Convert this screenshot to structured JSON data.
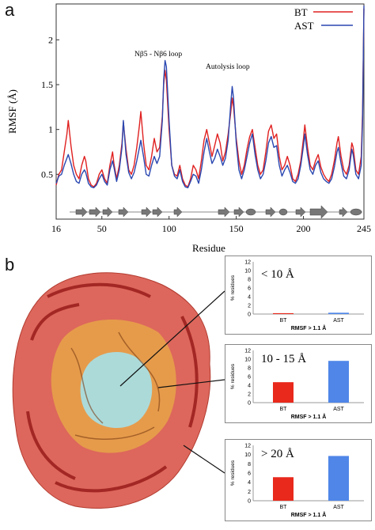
{
  "panel_labels": {
    "a": "a",
    "b": "b"
  },
  "colors": {
    "bt": "#e02020",
    "ast": "#2a47b0",
    "bar_bt": "#e8291c",
    "bar_ast": "#4f86e8",
    "protein_outer": "#d9574a",
    "protein_mid": "#e6a04a",
    "protein_core": "#a9dde0"
  },
  "chart_data": [
    {
      "type": "line",
      "xlabel": "Residue",
      "ylabel": "RMSF (Å)",
      "x_ticks": [
        "16",
        "50",
        "100",
        "150",
        "200",
        "245"
      ],
      "y_ticks": [
        "0.5",
        "1",
        "1.5",
        "2"
      ],
      "xlim": [
        16,
        245
      ],
      "ylim": [
        0.0,
        2.4
      ],
      "legend": {
        "placement": "top-right",
        "entries": [
          "BT",
          "AST"
        ]
      },
      "annotations": [
        "Nβ5 - Nβ6 loop",
        "Autolysis loop"
      ],
      "series": [
        {
          "name": "BT",
          "points": [
            [
              16,
              0.38
            ],
            [
              18,
              0.5
            ],
            [
              20,
              0.55
            ],
            [
              22,
              0.75
            ],
            [
              24,
              0.95
            ],
            [
              25,
              1.1
            ],
            [
              27,
              0.82
            ],
            [
              29,
              0.6
            ],
            [
              31,
              0.5
            ],
            [
              33,
              0.45
            ],
            [
              35,
              0.6
            ],
            [
              37,
              0.7
            ],
            [
              38,
              0.65
            ],
            [
              40,
              0.45
            ],
            [
              42,
              0.38
            ],
            [
              44,
              0.36
            ],
            [
              46,
              0.4
            ],
            [
              48,
              0.5
            ],
            [
              50,
              0.55
            ],
            [
              52,
              0.45
            ],
            [
              54,
              0.4
            ],
            [
              56,
              0.6
            ],
            [
              58,
              0.75
            ],
            [
              59,
              0.62
            ],
            [
              61,
              0.45
            ],
            [
              63,
              0.6
            ],
            [
              65,
              0.85
            ],
            [
              66,
              1.08
            ],
            [
              68,
              0.78
            ],
            [
              70,
              0.55
            ],
            [
              72,
              0.5
            ],
            [
              74,
              0.6
            ],
            [
              76,
              0.8
            ],
            [
              78,
              1.05
            ],
            [
              79,
              1.2
            ],
            [
              81,
              0.85
            ],
            [
              83,
              0.6
            ],
            [
              85,
              0.55
            ],
            [
              87,
              0.7
            ],
            [
              89,
              0.9
            ],
            [
              91,
              0.75
            ],
            [
              93,
              0.8
            ],
            [
              95,
              1.15
            ],
            [
              96,
              1.5
            ],
            [
              97,
              1.66
            ],
            [
              98,
              1.55
            ],
            [
              100,
              1.0
            ],
            [
              102,
              0.6
            ],
            [
              104,
              0.5
            ],
            [
              106,
              0.48
            ],
            [
              108,
              0.6
            ],
            [
              110,
              0.45
            ],
            [
              112,
              0.38
            ],
            [
              114,
              0.36
            ],
            [
              116,
              0.45
            ],
            [
              118,
              0.6
            ],
            [
              120,
              0.55
            ],
            [
              122,
              0.45
            ],
            [
              124,
              0.65
            ],
            [
              126,
              0.88
            ],
            [
              128,
              1.0
            ],
            [
              130,
              0.85
            ],
            [
              132,
              0.7
            ],
            [
              134,
              0.82
            ],
            [
              136,
              0.95
            ],
            [
              138,
              0.85
            ],
            [
              140,
              0.65
            ],
            [
              142,
              0.75
            ],
            [
              144,
              0.95
            ],
            [
              146,
              1.2
            ],
            [
              147,
              1.35
            ],
            [
              148,
              1.25
            ],
            [
              150,
              0.9
            ],
            [
              152,
              0.65
            ],
            [
              154,
              0.5
            ],
            [
              156,
              0.6
            ],
            [
              158,
              0.78
            ],
            [
              160,
              0.92
            ],
            [
              162,
              1.0
            ],
            [
              164,
              0.8
            ],
            [
              166,
              0.6
            ],
            [
              168,
              0.5
            ],
            [
              170,
              0.55
            ],
            [
              172,
              0.75
            ],
            [
              174,
              0.98
            ],
            [
              176,
              1.05
            ],
            [
              178,
              0.9
            ],
            [
              180,
              0.95
            ],
            [
              182,
              0.7
            ],
            [
              184,
              0.55
            ],
            [
              186,
              0.6
            ],
            [
              188,
              0.7
            ],
            [
              190,
              0.6
            ],
            [
              192,
              0.45
            ],
            [
              194,
              0.42
            ],
            [
              196,
              0.5
            ],
            [
              198,
              0.65
            ],
            [
              200,
              0.9
            ],
            [
              201,
              1.05
            ],
            [
              203,
              0.8
            ],
            [
              205,
              0.6
            ],
            [
              207,
              0.55
            ],
            [
              209,
              0.65
            ],
            [
              211,
              0.72
            ],
            [
              213,
              0.58
            ],
            [
              215,
              0.5
            ],
            [
              217,
              0.45
            ],
            [
              219,
              0.42
            ],
            [
              221,
              0.5
            ],
            [
              223,
              0.65
            ],
            [
              225,
              0.85
            ],
            [
              226,
              0.92
            ],
            [
              228,
              0.7
            ],
            [
              230,
              0.55
            ],
            [
              232,
              0.5
            ],
            [
              234,
              0.6
            ],
            [
              236,
              0.85
            ],
            [
              237,
              0.8
            ],
            [
              239,
              0.55
            ],
            [
              241,
              0.5
            ],
            [
              243,
              0.7
            ],
            [
              244,
              1.2
            ],
            [
              245,
              2.35
            ]
          ]
        },
        {
          "name": "AST",
          "points": [
            [
              16,
              0.4
            ],
            [
              18,
              0.48
            ],
            [
              20,
              0.5
            ],
            [
              22,
              0.6
            ],
            [
              24,
              0.68
            ],
            [
              25,
              0.72
            ],
            [
              27,
              0.62
            ],
            [
              29,
              0.5
            ],
            [
              31,
              0.42
            ],
            [
              33,
              0.4
            ],
            [
              35,
              0.5
            ],
            [
              37,
              0.55
            ],
            [
              38,
              0.52
            ],
            [
              40,
              0.4
            ],
            [
              42,
              0.36
            ],
            [
              44,
              0.35
            ],
            [
              46,
              0.38
            ],
            [
              48,
              0.45
            ],
            [
              50,
              0.5
            ],
            [
              52,
              0.42
            ],
            [
              54,
              0.38
            ],
            [
              56,
              0.55
            ],
            [
              58,
              0.65
            ],
            [
              59,
              0.58
            ],
            [
              61,
              0.42
            ],
            [
              63,
              0.55
            ],
            [
              65,
              0.8
            ],
            [
              66,
              1.1
            ],
            [
              68,
              0.72
            ],
            [
              70,
              0.52
            ],
            [
              72,
              0.45
            ],
            [
              74,
              0.52
            ],
            [
              76,
              0.65
            ],
            [
              78,
              0.8
            ],
            [
              79,
              0.88
            ],
            [
              81,
              0.7
            ],
            [
              83,
              0.5
            ],
            [
              85,
              0.48
            ],
            [
              87,
              0.6
            ],
            [
              89,
              0.7
            ],
            [
              91,
              0.62
            ],
            [
              93,
              0.7
            ],
            [
              95,
              1.1
            ],
            [
              96,
              1.55
            ],
            [
              97,
              1.77
            ],
            [
              98,
              1.7
            ],
            [
              100,
              1.1
            ],
            [
              102,
              0.6
            ],
            [
              104,
              0.48
            ],
            [
              106,
              0.45
            ],
            [
              108,
              0.55
            ],
            [
              110,
              0.42
            ],
            [
              112,
              0.36
            ],
            [
              114,
              0.35
            ],
            [
              116,
              0.42
            ],
            [
              118,
              0.5
            ],
            [
              120,
              0.48
            ],
            [
              122,
              0.4
            ],
            [
              124,
              0.55
            ],
            [
              126,
              0.75
            ],
            [
              128,
              0.9
            ],
            [
              130,
              0.75
            ],
            [
              132,
              0.62
            ],
            [
              134,
              0.68
            ],
            [
              136,
              0.78
            ],
            [
              138,
              0.7
            ],
            [
              140,
              0.6
            ],
            [
              142,
              0.68
            ],
            [
              144,
              0.88
            ],
            [
              146,
              1.3
            ],
            [
              147,
              1.48
            ],
            [
              148,
              1.35
            ],
            [
              150,
              0.85
            ],
            [
              152,
              0.55
            ],
            [
              154,
              0.45
            ],
            [
              156,
              0.55
            ],
            [
              158,
              0.7
            ],
            [
              160,
              0.85
            ],
            [
              162,
              0.95
            ],
            [
              164,
              0.72
            ],
            [
              166,
              0.55
            ],
            [
              168,
              0.45
            ],
            [
              170,
              0.5
            ],
            [
              172,
              0.65
            ],
            [
              174,
              0.85
            ],
            [
              176,
              0.92
            ],
            [
              178,
              0.8
            ],
            [
              180,
              0.82
            ],
            [
              182,
              0.6
            ],
            [
              184,
              0.48
            ],
            [
              186,
              0.55
            ],
            [
              188,
              0.6
            ],
            [
              190,
              0.52
            ],
            [
              192,
              0.42
            ],
            [
              194,
              0.4
            ],
            [
              196,
              0.45
            ],
            [
              198,
              0.6
            ],
            [
              200,
              0.82
            ],
            [
              201,
              0.95
            ],
            [
              203,
              0.72
            ],
            [
              205,
              0.55
            ],
            [
              207,
              0.5
            ],
            [
              209,
              0.6
            ],
            [
              211,
              0.65
            ],
            [
              213,
              0.52
            ],
            [
              215,
              0.45
            ],
            [
              217,
              0.42
            ],
            [
              219,
              0.4
            ],
            [
              221,
              0.45
            ],
            [
              223,
              0.58
            ],
            [
              225,
              0.75
            ],
            [
              226,
              0.8
            ],
            [
              228,
              0.62
            ],
            [
              230,
              0.48
            ],
            [
              232,
              0.45
            ],
            [
              234,
              0.55
            ],
            [
              236,
              0.78
            ],
            [
              237,
              0.72
            ],
            [
              239,
              0.5
            ],
            [
              241,
              0.45
            ],
            [
              243,
              0.6
            ],
            [
              244,
              1.1
            ],
            [
              245,
              2.38
            ]
          ]
        }
      ]
    },
    {
      "type": "bar",
      "title": "< 10 Å",
      "categories": [
        "BT",
        "AST"
      ],
      "values": [
        0.2,
        0.3
      ],
      "ylabel": "% residues",
      "xlabel": "RMSF > 1.1 Å",
      "y_ticks": [
        "0",
        "2",
        "4",
        "6",
        "8",
        "10",
        "12"
      ],
      "ylim": [
        0,
        12
      ]
    },
    {
      "type": "bar",
      "title": "10 - 15 Å",
      "categories": [
        "BT",
        "AST"
      ],
      "values": [
        4.7,
        9.6
      ],
      "ylabel": "% residues",
      "xlabel": "RMSF > 1.1 Å",
      "y_ticks": [
        "0",
        "2",
        "4",
        "6",
        "8",
        "10",
        "12"
      ],
      "ylim": [
        0,
        12
      ]
    },
    {
      "type": "bar",
      "title": "> 20 Å",
      "categories": [
        "BT",
        "AST"
      ],
      "values": [
        5.1,
        9.7
      ],
      "ylabel": "% residues",
      "xlabel": "RMSF > 1.1 Å",
      "y_ticks": [
        "0",
        "2",
        "4",
        "6",
        "8",
        "10",
        "12"
      ],
      "ylim": [
        0,
        12
      ]
    }
  ]
}
